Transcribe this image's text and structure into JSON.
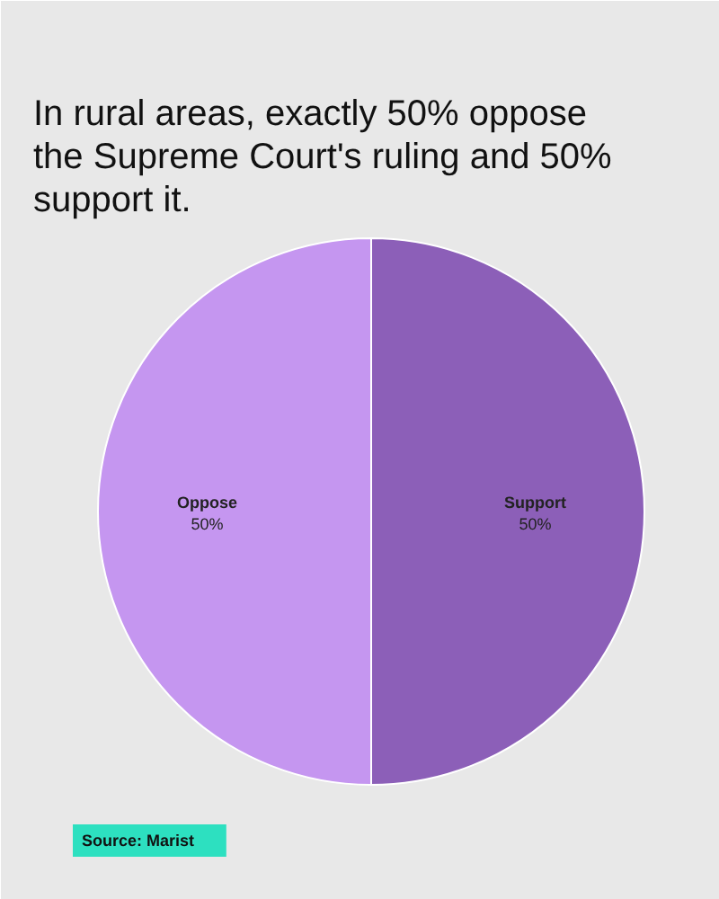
{
  "chart_data": {
    "type": "pie",
    "title": "In rural areas, exactly 50% oppose the Supreme Court's ruling and 50% support it.",
    "categories": [
      "Support",
      "Oppose"
    ],
    "values": [
      50,
      50
    ],
    "colors": [
      "#8c5fb8",
      "#c596f0"
    ],
    "value_labels": [
      "50%",
      "50%"
    ],
    "annotations": [
      "Source: Marist"
    ]
  }
}
